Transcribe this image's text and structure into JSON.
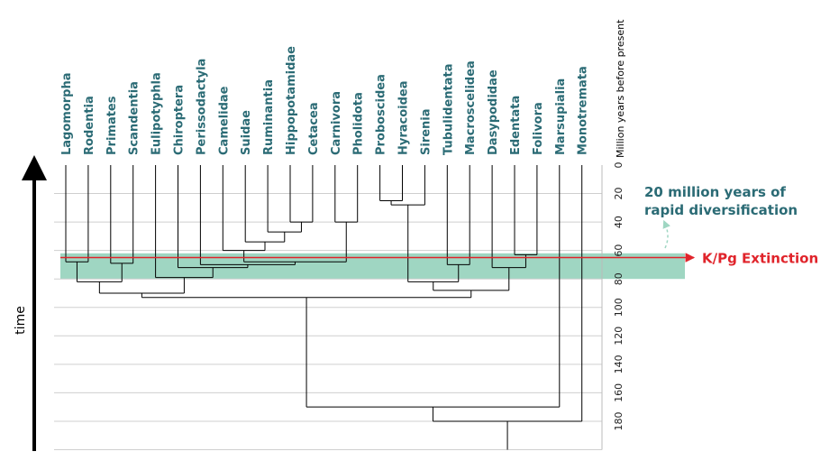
{
  "chart_data": {
    "type": "dendrogram",
    "axis_label": "Million years before present",
    "time_label": "time",
    "ylim": [
      0,
      200
    ],
    "yticks": [
      0,
      20,
      40,
      60,
      80,
      100,
      120,
      140,
      160,
      180
    ],
    "band": {
      "range": [
        62,
        80
      ],
      "color": "#9fd6c2"
    },
    "extinction": {
      "value": 65,
      "label": "K/Pg Extinction",
      "color": "#e0242b"
    },
    "annotation": "20 million years of rapid diversification",
    "tree": {
      "age": 180,
      "children": [
        {
          "age": 170,
          "children": [
            {
              "age": 93,
              "children": [
                {
                  "age": 90,
                  "children": [
                    {
                      "age": 82,
                      "children": [
                        {
                          "age": 68,
                          "children": [
                            {
                              "label": "Lagomorpha"
                            },
                            {
                              "label": "Rodentia"
                            }
                          ]
                        },
                        {
                          "age": 69,
                          "children": [
                            {
                              "label": "Primates"
                            },
                            {
                              "label": "Scandentia"
                            }
                          ]
                        }
                      ]
                    },
                    {
                      "age": 79,
                      "children": [
                        {
                          "label": "Eulipotyphla"
                        },
                        {
                          "age": 72,
                          "children": [
                            {
                              "label": "Chiroptera"
                            },
                            {
                              "age": 70,
                              "children": [
                                {
                                  "label": "Perissodactyla"
                                },
                                {
                                  "age": 68,
                                  "children": [
                                    {
                                      "age": 60,
                                      "children": [
                                        {
                                          "label": "Camelidae"
                                        },
                                        {
                                          "age": 54,
                                          "children": [
                                            {
                                              "label": "Suidae"
                                            },
                                            {
                                              "age": 47,
                                              "children": [
                                                {
                                                  "label": "Ruminantia"
                                                },
                                                {
                                                  "age": 40,
                                                  "children": [
                                                    {
                                                      "label": "Hippopotamidae"
                                                    },
                                                    {
                                                      "label": "Cetacea"
                                                    }
                                                  ]
                                                }
                                              ]
                                            }
                                          ]
                                        }
                                      ]
                                    },
                                    {
                                      "age": 40,
                                      "children": [
                                        {
                                          "label": "Carnivora"
                                        },
                                        {
                                          "label": "Pholidota"
                                        }
                                      ]
                                    }
                                  ]
                                }
                              ]
                            }
                          ]
                        }
                      ]
                    }
                  ]
                },
                {
                  "age": 88,
                  "children": [
                    {
                      "age": 82,
                      "children": [
                        {
                          "age": 28,
                          "children": [
                            {
                              "age": 25,
                              "children": [
                                {
                                  "label": "Proboscidea"
                                },
                                {
                                  "label": "Hyracoidea"
                                }
                              ]
                            },
                            {
                              "label": "Sirenia"
                            }
                          ]
                        },
                        {
                          "age": 70,
                          "children": [
                            {
                              "label": "Tubulidentata"
                            },
                            {
                              "label": "Macroscelidea"
                            }
                          ]
                        }
                      ]
                    },
                    {
                      "age": 72,
                      "children": [
                        {
                          "label": "Dasypodidae"
                        },
                        {
                          "age": 63,
                          "children": [
                            {
                              "label": "Edentata"
                            },
                            {
                              "label": "Folivora"
                            }
                          ]
                        }
                      ]
                    }
                  ]
                }
              ]
            },
            {
              "label": "Marsupialia"
            }
          ]
        },
        {
          "label": "Monotremata"
        }
      ]
    }
  }
}
